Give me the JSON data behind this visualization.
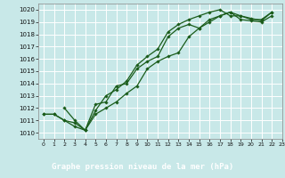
{
  "title": "Graphe pression niveau de la mer (hPa)",
  "bg_color": "#c8e8e8",
  "grid_color": "#aed4d4",
  "line_color": "#1a5c1a",
  "label_bg": "#2d7a2d",
  "label_fg": "#ffffff",
  "xlim": [
    -0.5,
    23
  ],
  "ylim": [
    1009.5,
    1020.5
  ],
  "xticks": [
    0,
    1,
    2,
    3,
    4,
    5,
    6,
    7,
    8,
    9,
    10,
    11,
    12,
    13,
    14,
    15,
    16,
    17,
    18,
    19,
    20,
    21,
    22,
    23
  ],
  "yticks": [
    1010,
    1011,
    1012,
    1013,
    1014,
    1015,
    1016,
    1017,
    1018,
    1019,
    1020
  ],
  "series": [
    {
      "x": [
        0,
        1,
        2,
        3,
        4,
        5,
        6,
        7,
        8,
        9,
        10,
        11,
        12,
        13,
        14,
        15,
        16,
        17,
        18,
        19,
        20,
        21,
        22
      ],
      "y": [
        1011.5,
        1011.5,
        1011.0,
        1010.5,
        1010.2,
        1012.3,
        1012.5,
        1013.8,
        1014.0,
        1015.2,
        1015.8,
        1016.2,
        1017.8,
        1018.5,
        1018.8,
        1018.5,
        1019.2,
        1019.5,
        1019.8,
        1019.2,
        1019.1,
        1019.0,
        1019.5
      ]
    },
    {
      "x": [
        0,
        1,
        2,
        3,
        4,
        5,
        6,
        7,
        8,
        9,
        10,
        11,
        12,
        13,
        14,
        15,
        16,
        17,
        18,
        19,
        20,
        21,
        22
      ],
      "y": [
        1011.5,
        1011.5,
        1011.0,
        1010.8,
        1010.2,
        1011.5,
        1012.0,
        1012.5,
        1013.2,
        1013.8,
        1015.2,
        1015.8,
        1016.2,
        1016.5,
        1017.8,
        1018.5,
        1019.0,
        1019.5,
        1019.8,
        1019.5,
        1019.3,
        1019.1,
        1019.8
      ]
    },
    {
      "x": [
        2,
        3,
        4,
        5,
        6,
        7,
        8,
        9,
        10,
        11,
        12,
        13,
        14,
        15,
        16,
        17,
        18,
        19,
        20,
        21,
        22
      ],
      "y": [
        1012.0,
        1011.0,
        1010.2,
        1011.8,
        1013.0,
        1013.5,
        1014.2,
        1015.5,
        1016.2,
        1016.8,
        1018.2,
        1018.8,
        1019.2,
        1019.5,
        1019.8,
        1020.0,
        1019.5,
        1019.5,
        1019.2,
        1019.2,
        1019.8
      ]
    }
  ]
}
